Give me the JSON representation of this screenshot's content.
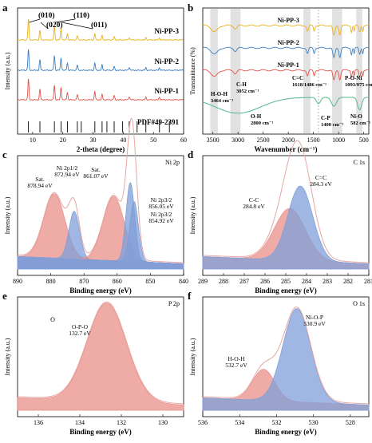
{
  "figure": {
    "panels": [
      "a",
      "b",
      "c",
      "d",
      "e",
      "f"
    ]
  },
  "colors": {
    "ni_pp_3": "#e8b21c",
    "ni_pp_2": "#3a7fc2",
    "ni_pp_1": "#e0534a",
    "pdf_card": "#000000",
    "ftir_green": "#53b88a",
    "band_gray": "#d9d9d9",
    "red_fill": "#e9908a",
    "blue_fill": "#7f9fd8",
    "envelope": "#e6a7a2"
  },
  "chart_data": [
    {
      "panel_label": "a",
      "type": "line",
      "xlabel": "2-theta (degree)",
      "ylabel": "Intensity (a.u.)",
      "xlim": [
        5,
        60
      ],
      "xticks": [
        10,
        20,
        30,
        40,
        50,
        60
      ],
      "series": [
        {
          "name": "Ni-PP-3",
          "color": "#e8b21c",
          "offset": 3,
          "peaks": [
            [
              8.6,
              1.0
            ],
            [
              12.4,
              0.45
            ],
            [
              17.2,
              0.65
            ],
            [
              19.4,
              0.55
            ],
            [
              21.5,
              0.3
            ],
            [
              24.8,
              0.2
            ],
            [
              30.6,
              0.3
            ],
            [
              33.0,
              0.2
            ],
            [
              37.0,
              0.15
            ],
            [
              42.0,
              0.12
            ],
            [
              47.5,
              0.1
            ],
            [
              52.0,
              0.1
            ]
          ]
        },
        {
          "name": "Ni-PP-2",
          "color": "#3a7fc2",
          "offset": 2,
          "peaks": [
            [
              8.6,
              1.0
            ],
            [
              12.4,
              0.5
            ],
            [
              17.2,
              0.7
            ],
            [
              19.4,
              0.6
            ],
            [
              21.5,
              0.35
            ],
            [
              24.8,
              0.25
            ],
            [
              30.6,
              0.35
            ],
            [
              33.0,
              0.25
            ],
            [
              37.0,
              0.18
            ],
            [
              42.0,
              0.15
            ],
            [
              47.5,
              0.12
            ],
            [
              52.0,
              0.12
            ]
          ]
        },
        {
          "name": "Ni-PP-1",
          "color": "#e0534a",
          "offset": 1,
          "peaks": [
            [
              8.6,
              1.0
            ],
            [
              12.4,
              0.5
            ],
            [
              17.2,
              0.7
            ],
            [
              19.4,
              0.6
            ],
            [
              21.5,
              0.35
            ],
            [
              24.8,
              0.25
            ],
            [
              30.6,
              0.4
            ],
            [
              33.0,
              0.25
            ],
            [
              37.0,
              0.2
            ],
            [
              42.0,
              0.15
            ],
            [
              47.5,
              0.12
            ],
            [
              52.0,
              0.12
            ]
          ]
        },
        {
          "name": "PDF#49-2391",
          "color": "#000000",
          "sticks": [
            8.6,
            12.4,
            17.2,
            19.4,
            21.5,
            24.8,
            26.1,
            30.6,
            33.0,
            34.6,
            37.0,
            39.8,
            42.0,
            44.6,
            47.5,
            52.0,
            55.3
          ]
        }
      ],
      "annotations": [
        {
          "text": "(010)",
          "x": 8.6
        },
        {
          "text": "(020)",
          "x": 12.4
        },
        {
          "text": "(110)",
          "x": 17.2
        },
        {
          "text": "(011)",
          "x": 19.4
        }
      ]
    },
    {
      "panel_label": "b",
      "type": "line",
      "xlabel": "Wavenumber (cm⁻¹)",
      "ylabel": "Transmittance (%)",
      "xlim": [
        3700,
        400
      ],
      "xticks": [
        3500,
        3000,
        2500,
        2000,
        1500,
        1000,
        500
      ],
      "bands": [
        [
          3550,
          3400
        ],
        [
          3150,
          2950
        ],
        [
          1700,
          1560
        ],
        [
          1130,
          930
        ],
        [
          650,
          530
        ]
      ],
      "series": [
        {
          "name": "Ni-PP-3",
          "color": "#e8b21c"
        },
        {
          "name": "Ni-PP-2",
          "color": "#3a7fc2"
        },
        {
          "name": "Ni-PP-1",
          "color": "#e0534a"
        },
        {
          "name": "",
          "color": "#53b88a"
        }
      ],
      "annotations": [
        {
          "label": "H-O-H",
          "value": "3464 cm⁻¹"
        },
        {
          "label": "C-H",
          "value": "3052 cm⁻¹"
        },
        {
          "label": "C=C",
          "value": "1618/1486 cm⁻¹"
        },
        {
          "label": "P-O-Ni",
          "value": "1093/975 cm⁻¹"
        },
        {
          "label": "O-H",
          "value": "2800 cm⁻¹"
        },
        {
          "label": "C-P",
          "value": "1400 cm⁻¹"
        },
        {
          "label": "Ni-O",
          "value": "582 cm⁻¹"
        }
      ]
    },
    {
      "panel_label": "c",
      "type": "area",
      "corner_label": "Ni 2p",
      "xlabel": "Binding energy (eV)",
      "ylabel": "Intensity (a.u.)",
      "xlim": [
        890,
        840
      ],
      "xticks": [
        890,
        880,
        870,
        860,
        850,
        840
      ],
      "peaks": [
        {
          "name": "Sat.",
          "center": 878.94,
          "height": 0.62,
          "width": 3.2,
          "fill": "red",
          "label": "878.94 eV"
        },
        {
          "name": "Ni 2p1/2",
          "center": 872.94,
          "height": 0.46,
          "width": 1.6,
          "fill": "blue",
          "label": "872.94 eV"
        },
        {
          "name": "Sat.",
          "center": 861.07,
          "height": 0.62,
          "width": 3.2,
          "fill": "red",
          "label": "861.07 eV"
        },
        {
          "name": "Ni 2p3/2",
          "center": 856.05,
          "height": 0.76,
          "width": 1.3,
          "fill": "blue",
          "label": "856.05 eV"
        },
        {
          "name": "Ni 2p3/2",
          "center": 854.92,
          "height": 0.58,
          "width": 1.3,
          "fill": "blue",
          "label": "854.92 eV"
        }
      ]
    },
    {
      "panel_label": "d",
      "type": "area",
      "corner_label": "C 1s",
      "xlabel": "Binding energy (eV)",
      "ylabel": "Intensity (a.u.)",
      "xlim": [
        289,
        281
      ],
      "xticks": [
        289,
        288,
        287,
        286,
        285,
        284,
        283,
        282,
        281
      ],
      "peaks": [
        {
          "name": "C-C",
          "center": 284.8,
          "height": 0.5,
          "width": 0.75,
          "fill": "red",
          "label": "284.8 eV"
        },
        {
          "name": "C=C",
          "center": 284.3,
          "height": 0.72,
          "width": 0.6,
          "fill": "blue",
          "label": "284.3 eV"
        }
      ]
    },
    {
      "panel_label": "e",
      "type": "area",
      "corner_label": "P 2p",
      "xlabel": "Binding energy (eV)",
      "ylabel": "Intensity (a.u.)",
      "xlim": [
        137,
        129
      ],
      "xticks": [
        136,
        134,
        132,
        130
      ],
      "peaks": [
        {
          "name": "O-P-O",
          "center": 132.7,
          "height": 0.95,
          "width": 0.95,
          "fill": "red",
          "label": "132.7 eV"
        }
      ]
    },
    {
      "panel_label": "f",
      "type": "area",
      "corner_label": "O 1s",
      "xlabel": "Binding energy (eV)",
      "ylabel": "Intensity (a.u.)",
      "xlim": [
        536,
        527
      ],
      "xticks": [
        536,
        534,
        532,
        530,
        528
      ],
      "peaks": [
        {
          "name": "H-O-H",
          "center": 532.7,
          "height": 0.3,
          "width": 0.6,
          "fill": "red",
          "label": "532.7 eV"
        },
        {
          "name": "Ni-O-P",
          "center": 530.9,
          "height": 0.9,
          "width": 0.75,
          "fill": "blue",
          "label": "530.9 eV"
        }
      ]
    }
  ]
}
